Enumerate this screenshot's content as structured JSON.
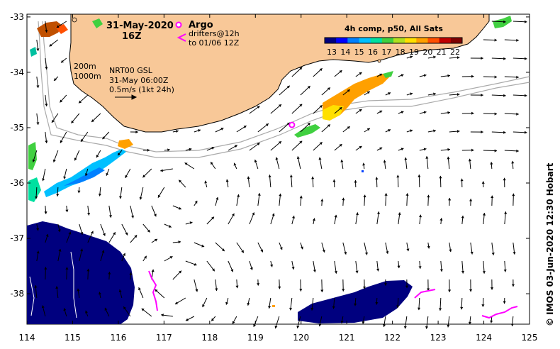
{
  "map": {
    "date_label": "31-May-2020",
    "time_label": "16Z",
    "argo_label": "Argo",
    "drifters_label": "drifters@12h",
    "drifters_range": "to 01/06 12Z",
    "isobath_200": "200m",
    "isobath_1000": "1000m",
    "product_label": "NRT00 GSL",
    "product_time": "31-May 06:00Z",
    "vector_scale": "0.5m/s (1kt 24h)",
    "credit": "© IMOS 03-Jun-2020 12:30 Hobart",
    "colorbar": {
      "title": "4h comp, p50, All Sats",
      "ticks": [
        "13",
        "14",
        "15",
        "16",
        "17",
        "18",
        "19",
        "20",
        "21",
        "22"
      ],
      "colors": [
        "#00007f",
        "#0000ff",
        "#0080ff",
        "#00c0ff",
        "#00e0a0",
        "#40d040",
        "#b0e020",
        "#ffe000",
        "#ffa000",
        "#ff5000",
        "#c00000",
        "#7f0000"
      ]
    },
    "x_ticks": [
      {
        "value": 114,
        "label": "114"
      },
      {
        "value": 115,
        "label": "115"
      },
      {
        "value": 116,
        "label": "116"
      },
      {
        "value": 117,
        "label": "117"
      },
      {
        "value": 118,
        "label": "118"
      },
      {
        "value": 119,
        "label": "119"
      },
      {
        "value": 120,
        "label": "120"
      },
      {
        "value": 121,
        "label": "121"
      },
      {
        "value": 122,
        "label": "122"
      },
      {
        "value": 123,
        "label": "123"
      },
      {
        "value": 124,
        "label": "124"
      },
      {
        "value": 125,
        "label": "125"
      }
    ],
    "y_ticks": [
      {
        "value": -33,
        "label": "-33"
      },
      {
        "value": -34,
        "label": "-34"
      },
      {
        "value": -35,
        "label": "-35"
      },
      {
        "value": -36,
        "label": "-36"
      },
      {
        "value": -37,
        "label": "-37"
      },
      {
        "value": -38,
        "label": "-38"
      }
    ],
    "argo_floats": [
      {
        "lon": 119.8,
        "lat": -34.95
      }
    ],
    "colors": {
      "land": "#f8c898",
      "isobath": "#aaaaaa",
      "drifter": "#ff00ff",
      "arrow": "#000000"
    }
  }
}
